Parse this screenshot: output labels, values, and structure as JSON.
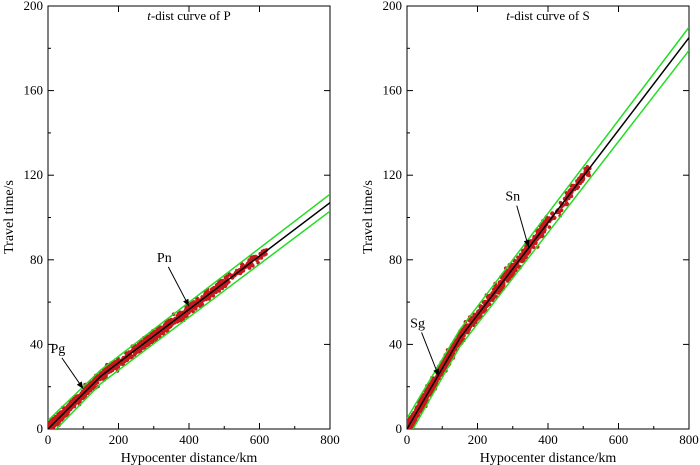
{
  "colors": {
    "model_curve": "#000000",
    "bound_curve": "#22dd22",
    "observations": "#c8191e",
    "axes": "#000000"
  },
  "chart_data": [
    {
      "type": "scatter",
      "title_italic": "t",
      "title_rest": "-dist curve of P",
      "xlabel": "Hypocenter distance/km",
      "ylabel": "Travel time/s",
      "xlim": [
        0,
        800
      ],
      "ylim": [
        0,
        200
      ],
      "xticks": [
        0,
        200,
        400,
        600,
        800
      ],
      "yticks": [
        0,
        40,
        80,
        120,
        160,
        200
      ],
      "grid": false,
      "model_curve": {
        "x": [
          0,
          150,
          800
        ],
        "y": [
          0,
          25,
          107
        ]
      },
      "upper_bound": {
        "x": [
          0,
          150,
          800
        ],
        "y": [
          4,
          28,
          111
        ]
      },
      "lower_bound": {
        "x": [
          0,
          150,
          800
        ],
        "y": [
          -4,
          21.5,
          103
        ]
      },
      "scatter_band": {
        "x_range": [
          0,
          620
        ],
        "spread_s": 2.5
      },
      "annotations": [
        {
          "text": "Pg",
          "tip_x": 100,
          "tip_y": 19,
          "label_x": 28,
          "label_y": 36
        },
        {
          "text": "Pn",
          "tip_x": 400,
          "tip_y": 58,
          "label_x": 330,
          "label_y": 79
        }
      ]
    },
    {
      "type": "scatter",
      "title_italic": "t",
      "title_rest": "-dist curve of S",
      "xlabel": "Hypocenter distance/km",
      "ylabel": "Travel time/s",
      "xlim": [
        0,
        800
      ],
      "ylim": [
        0,
        200
      ],
      "xticks": [
        0,
        200,
        400,
        600,
        800
      ],
      "yticks": [
        0,
        40,
        80,
        120,
        160,
        200
      ],
      "grid": false,
      "model_curve": {
        "x": [
          0,
          150,
          800
        ],
        "y": [
          0,
          43,
          185
        ]
      },
      "upper_bound": {
        "x": [
          0,
          150,
          800
        ],
        "y": [
          5,
          47,
          190
        ]
      },
      "lower_bound": {
        "x": [
          0,
          150,
          800
        ],
        "y": [
          -5,
          39,
          179
        ]
      },
      "scatter_band": {
        "x_range": [
          0,
          520
        ],
        "spread_s": 3.5
      },
      "annotations": [
        {
          "text": "Sg",
          "tip_x": 90,
          "tip_y": 25,
          "label_x": 30,
          "label_y": 48
        },
        {
          "text": "Sn",
          "tip_x": 345,
          "tip_y": 86,
          "label_x": 300,
          "label_y": 108
        }
      ]
    }
  ]
}
